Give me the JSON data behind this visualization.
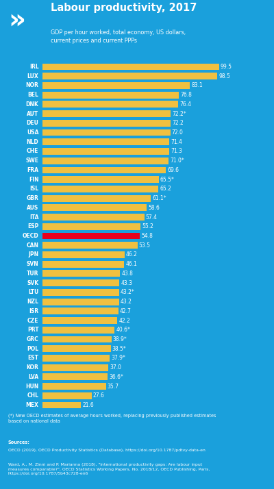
{
  "title": "Labour productivity, 2017",
  "subtitle": "GDP per hour worked, total economy, US dollars,\ncurrent prices and current PPPs",
  "bg_color": "#1aa0dc",
  "bar_color": "#f0c040",
  "oecd_bar_color": "#e8001c",
  "text_color": "#ffffff",
  "footnote": "(*) New OECD estimates of average hours worked, replacing previously published estimates\nbased on national data",
  "sources_line1": "Sources:",
  "sources_line2": "OECD (2019), OECD Productivity Statistics (Database), https://doi.org/10.1787/pdtvy-data-en",
  "sources_line3": "Ward, A., M. Zinni and P. Marianna (2018), \"International productivity gaps: Are labour input\nmeasures comparable?\", OECD Statistics Working Papers, No. 2018/12, OECD Publishing, Paris,\nhttps://doi.org/10.1787/5b43c728-en6",
  "countries": [
    "IRL",
    "LUX",
    "NOR",
    "BEL",
    "DNK",
    "AUT",
    "DEU",
    "USA",
    "NLD",
    "CHE",
    "SWE",
    "FRA",
    "FIN",
    "ISL",
    "GBR",
    "AUS",
    "ITA",
    "ESP",
    "OECD",
    "CAN",
    "JPN",
    "SVN",
    "TUR",
    "SVK",
    "LTU",
    "NZL",
    "ISR",
    "CZE",
    "PRT",
    "GRC",
    "POL",
    "EST",
    "KOR",
    "LVA",
    "HUN",
    "CHL",
    "MEX"
  ],
  "values": [
    99.5,
    98.5,
    83.1,
    76.8,
    76.4,
    72.2,
    72.2,
    72.0,
    71.4,
    71.3,
    71.0,
    69.6,
    65.5,
    65.2,
    61.1,
    58.6,
    57.4,
    55.2,
    54.8,
    53.5,
    46.2,
    46.1,
    43.8,
    43.3,
    43.2,
    43.2,
    42.7,
    42.2,
    40.6,
    38.9,
    38.5,
    37.9,
    37.0,
    36.6,
    35.7,
    27.6,
    21.6
  ],
  "labels": [
    "99.5",
    "98.5",
    "83.1",
    "76.8",
    "76.4",
    "72.2*",
    "72.2",
    "72.0",
    "71.4",
    "71.3",
    "71.0*",
    "69.6",
    "65.5*",
    "65.2",
    "61.1*",
    "58.6",
    "57.4",
    "55.2",
    "54.8",
    "53.5",
    "46.2",
    "46.1",
    "43.8",
    "43.3",
    "43.2*",
    "43.2",
    "42.7",
    "42.2",
    "40.6*",
    "38.9*",
    "38.5*",
    "37.9*",
    "37.0",
    "36.6*",
    "35.7",
    "27.6",
    "21.6"
  ],
  "fig_width": 4.0,
  "fig_height": 7.14,
  "dpi": 100
}
